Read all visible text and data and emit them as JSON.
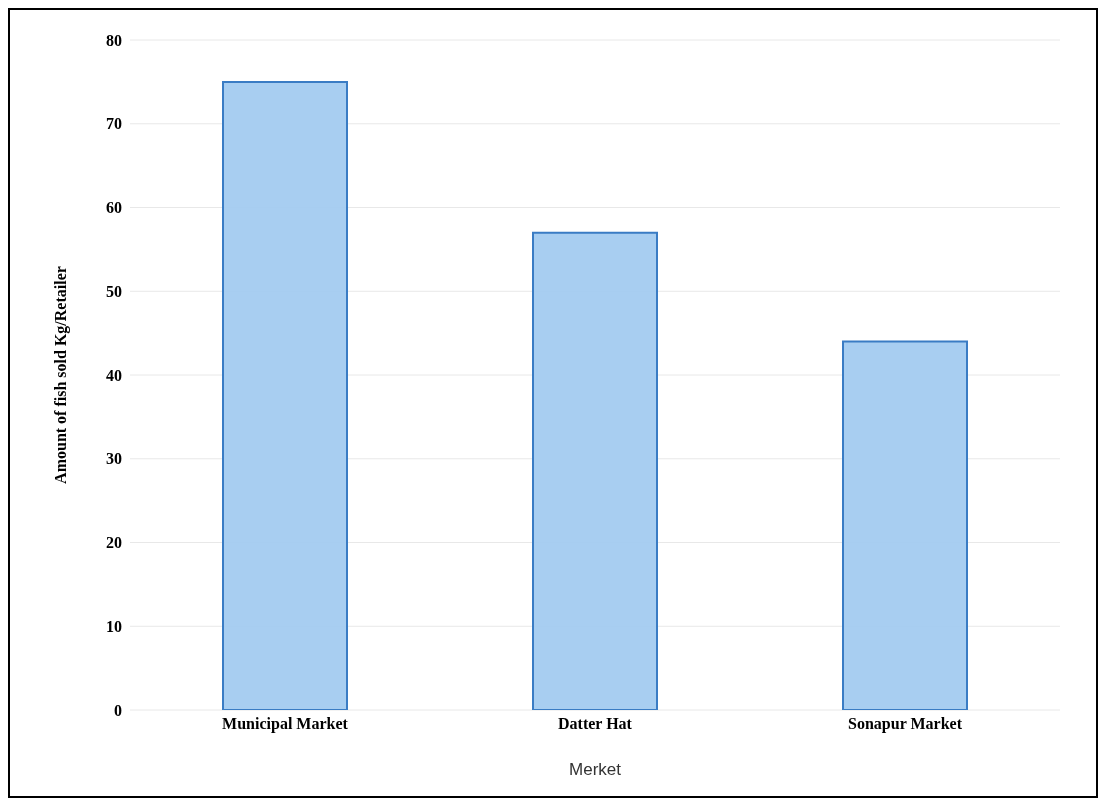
{
  "chart_data": {
    "type": "bar",
    "xlabel": "Merket",
    "ylabel": "Amount  of fish sold Kg/Retailer",
    "categories": [
      "Municipal Market",
      "Datter Hat",
      "Sonapur Market"
    ],
    "values": [
      75,
      57,
      44
    ],
    "color": "#a3cbf0",
    "ylim": [
      0,
      80
    ],
    "yticks": [
      0,
      10,
      20,
      30,
      40,
      50,
      60,
      70,
      80
    ],
    "grid": "y"
  }
}
